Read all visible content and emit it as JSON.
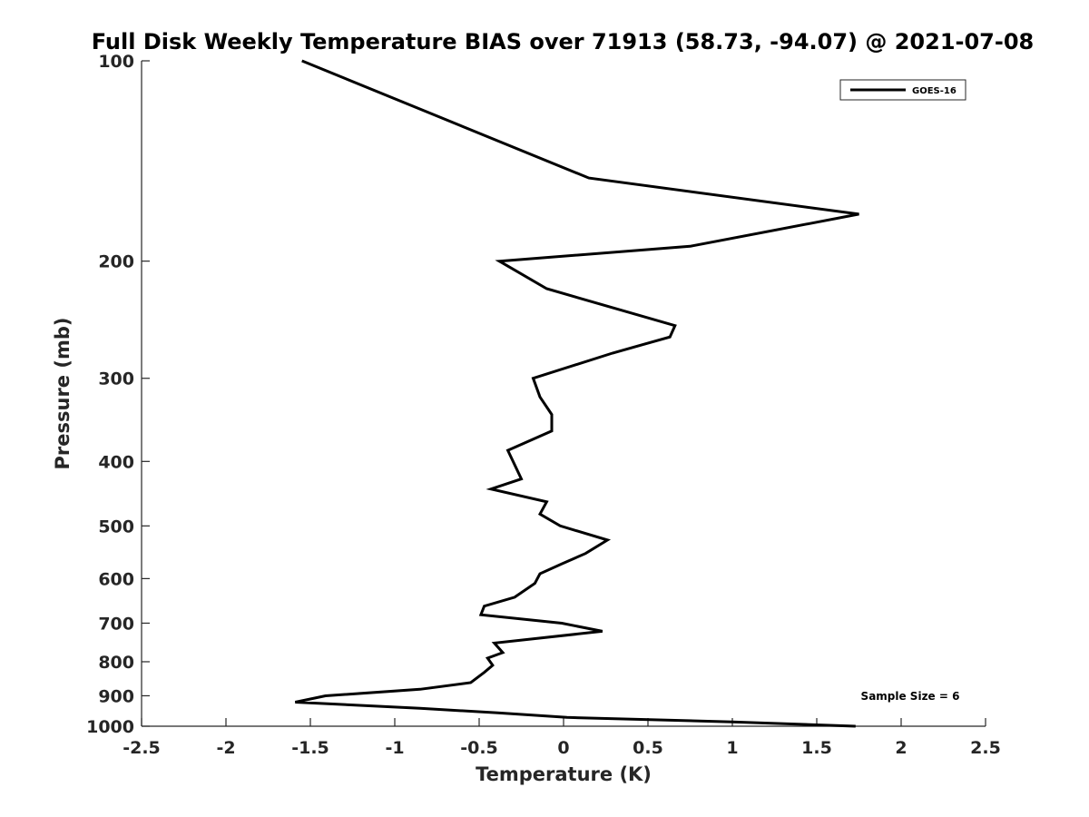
{
  "chart_data": {
    "type": "line",
    "title": "Full Disk Weekly Temperature BIAS over 71913 (58.73, -94.07) @ 2021-07-08",
    "xlabel": "Temperature (K)",
    "ylabel": "Pressure (mb)",
    "xlim": [
      -2.5,
      2.5
    ],
    "ylim": [
      100,
      1000
    ],
    "yscale": "log",
    "y_reversed": true,
    "x_ticks": [
      "-2.5",
      "-2",
      "-1.5",
      "-1",
      "-0.5",
      "0",
      "0.5",
      "1",
      "1.5",
      "2",
      "2.5"
    ],
    "y_ticks": [
      "100",
      "200",
      "300",
      "400",
      "500",
      "600",
      "700",
      "800",
      "900",
      "1000"
    ],
    "grid": false,
    "legend_position": "top-right",
    "series": [
      {
        "name": "GOES-16",
        "color": "#000000",
        "x": [
          -1.55,
          0.15,
          1.75,
          0.75,
          -0.38,
          -0.1,
          0.66,
          0.63,
          0.29,
          -0.18,
          -0.14,
          -0.07,
          -0.07,
          -0.33,
          -0.25,
          -0.43,
          -0.1,
          -0.14,
          -0.02,
          0.26,
          0.13,
          -0.01,
          -0.14,
          -0.17,
          -0.29,
          -0.47,
          -0.49,
          -0.01,
          0.23,
          -0.41,
          -0.36,
          -0.45,
          -0.42,
          -0.47,
          -0.55,
          -0.85,
          -1.41,
          -1.59,
          -0.85,
          -0.39,
          0.02,
          1.0,
          1.73
        ],
        "y": [
          100,
          150,
          170,
          190,
          200,
          220,
          250,
          260,
          275,
          300,
          320,
          340,
          360,
          385,
          425,
          440,
          460,
          480,
          500,
          525,
          550,
          570,
          590,
          610,
          640,
          660,
          680,
          700,
          720,
          750,
          775,
          790,
          810,
          830,
          860,
          880,
          900,
          920,
          940,
          955,
          970,
          985,
          1000
        ]
      }
    ],
    "annotations": [
      "Sample Size = 6"
    ]
  }
}
